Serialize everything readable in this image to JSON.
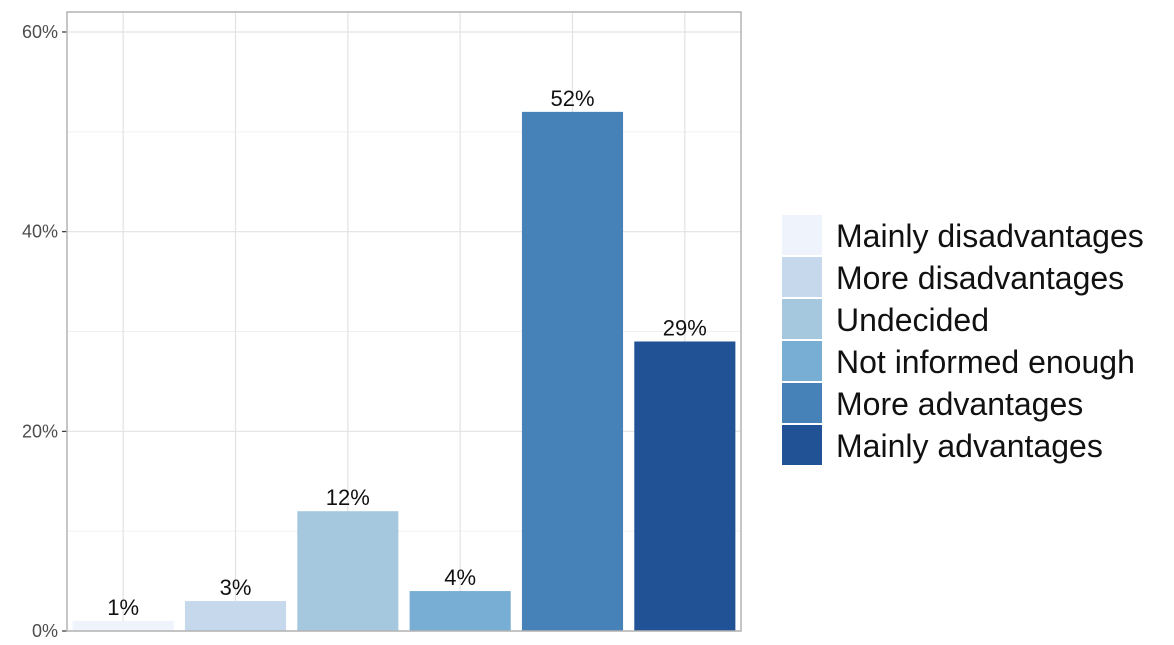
{
  "chart_data": {
    "type": "bar",
    "title": "",
    "xlabel": "",
    "ylabel": "",
    "categories": [
      "Mainly disadvantages",
      "More disadvantages",
      "Undecided",
      "Not informed enough",
      "More advantages",
      "Mainly advantages"
    ],
    "values": [
      1,
      3,
      12,
      4,
      52,
      29
    ],
    "value_labels": [
      "1%",
      "3%",
      "12%",
      "4%",
      "52%",
      "29%"
    ],
    "colors": [
      "#eef3fc",
      "#c6d9ec",
      "#a6c8df",
      "#78add4",
      "#4682b8",
      "#215296"
    ],
    "ylim": [
      0,
      60
    ],
    "yticks": [
      0,
      20,
      40,
      60
    ],
    "ytick_labels": [
      "0%",
      "20%",
      "40%",
      "60%"
    ],
    "grid": true,
    "legend_position": "right",
    "legend": [
      {
        "label": "Mainly disadvantages",
        "color": "#eef3fc"
      },
      {
        "label": "More disadvantages",
        "color": "#c6d9ec"
      },
      {
        "label": "Undecided",
        "color": "#a6c8df"
      },
      {
        "label": "Not informed enough",
        "color": "#78add4"
      },
      {
        "label": "More advantages",
        "color": "#4682b8"
      },
      {
        "label": "Mainly advantages",
        "color": "#215296"
      }
    ]
  }
}
